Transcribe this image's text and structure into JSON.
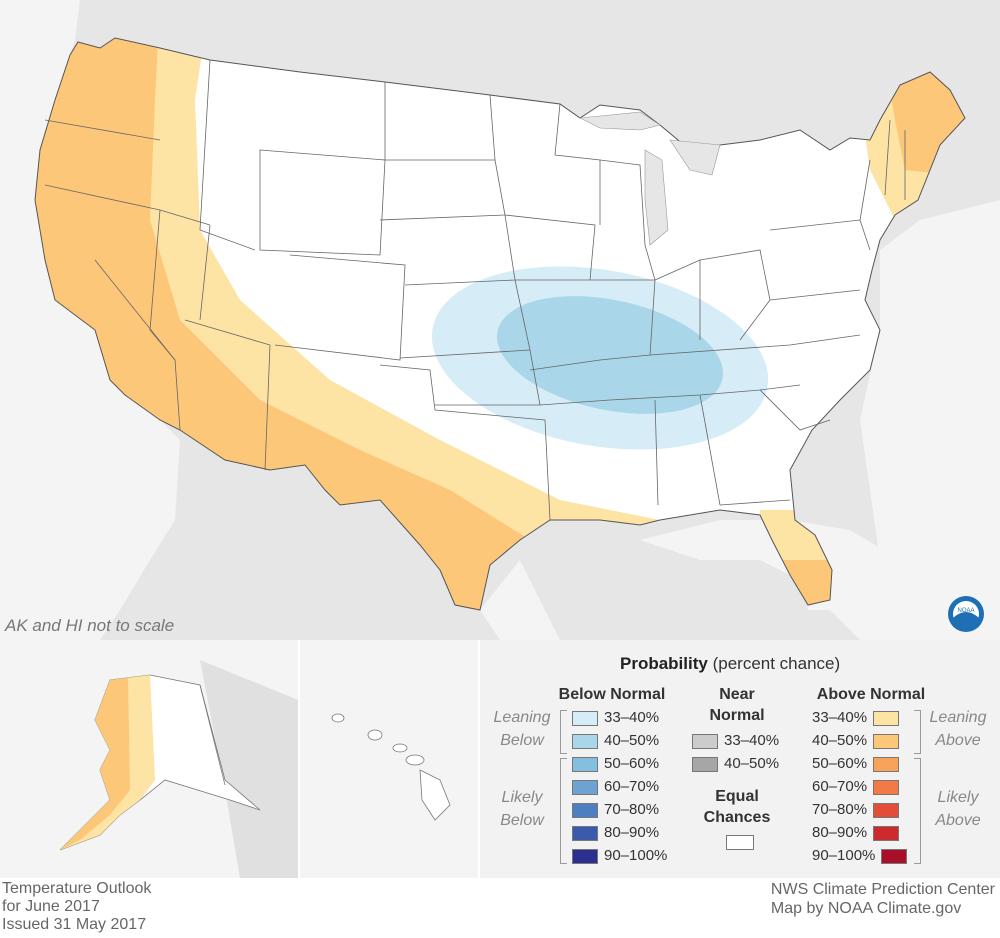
{
  "map": {
    "scale_note": "AK and HI not to scale"
  },
  "legend": {
    "title_bold": "Probability",
    "title_rest": " (percent chance)",
    "below_header": "Below Normal",
    "near_header_line1": "Near",
    "near_header_line2": "Normal",
    "above_header": "Above Normal",
    "leaning_below_1": "Leaning",
    "leaning_below_2": "Below",
    "likely_below_1": "Likely",
    "likely_below_2": "Below",
    "leaning_above_1": "Leaning",
    "leaning_above_2": "Above",
    "likely_above_1": "Likely",
    "likely_above_2": "Above",
    "equal_1": "Equal",
    "equal_2": "Chances",
    "below": [
      {
        "label": "33–40%",
        "color": "#d6edf7"
      },
      {
        "label": "40–50%",
        "color": "#aad6ea"
      },
      {
        "label": "50–60%",
        "color": "#85bfdf"
      },
      {
        "label": "60–70%",
        "color": "#6ea2d2"
      },
      {
        "label": "70–80%",
        "color": "#4e7fc1"
      },
      {
        "label": "80–90%",
        "color": "#3a5aab"
      },
      {
        "label": "90–100%",
        "color": "#2b2f8f"
      }
    ],
    "near": [
      {
        "label": "33–40%",
        "color": "#cccccc"
      },
      {
        "label": "40–50%",
        "color": "#a6a6a6"
      }
    ],
    "above": [
      {
        "label": "33–40%",
        "color": "#fde3a4"
      },
      {
        "label": "40–50%",
        "color": "#fcc779"
      },
      {
        "label": "50–60%",
        "color": "#f9a35a"
      },
      {
        "label": "60–70%",
        "color": "#f37a47"
      },
      {
        "label": "70–80%",
        "color": "#e44e38"
      },
      {
        "label": "80–90%",
        "color": "#cc2a2c"
      },
      {
        "label": "90–100%",
        "color": "#a8102a"
      }
    ]
  },
  "footer": {
    "left_line1": "Temperature Outlook",
    "left_line2": "for June 2017",
    "left_line3": "Issued 31 May 2017",
    "right_line1": "NWS Climate Prediction Center",
    "right_line2": "Map by NOAA Climate.gov"
  },
  "colors": {
    "ocean": "#ffffff",
    "land_outside": "#e6e6e6",
    "equal_chances": "#ffffff",
    "lean_above": "#fde3a4",
    "above_40_50": "#fcc779",
    "lean_below": "#d6edf7",
    "below_40_50": "#aad6ea"
  }
}
